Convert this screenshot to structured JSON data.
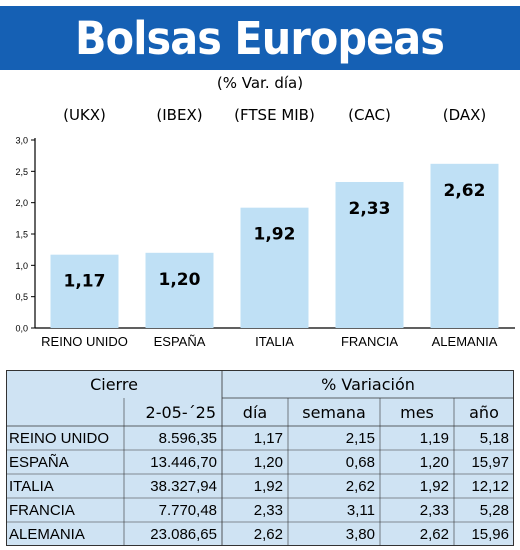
{
  "title": "Bolsas Europeas",
  "subtitle": "(% Var. día)",
  "chart_data": {
    "type": "bar",
    "title": "Bolsas Europeas",
    "subtitle": "(% Var. día)",
    "indices": [
      "(UKX)",
      "(IBEX)",
      "(FTSE MIB)",
      "(CAC)",
      "(DAX)"
    ],
    "categories": [
      "REINO UNIDO",
      "ESPAÑA",
      "ITALIA",
      "FRANCIA",
      "ALEMANIA"
    ],
    "values": [
      1.17,
      1.2,
      1.92,
      2.33,
      2.62
    ],
    "value_labels": [
      "1,17",
      "1,20",
      "1,92",
      "2,33",
      "2,62"
    ],
    "ylim": [
      0,
      3
    ],
    "yticks": [
      "0,0",
      "0,5",
      "1,0",
      "1,5",
      "2,0",
      "2,5",
      "3,0"
    ],
    "grid": false,
    "colors": {
      "bar": "#bfe0f5",
      "axis": "#000000"
    }
  },
  "table": {
    "header_cierre": "Cierre",
    "header_variacion": "% Variación",
    "date": "2-05-´25",
    "columns": [
      "día",
      "semana",
      "mes",
      "año"
    ],
    "rows": [
      {
        "name": "REINO UNIDO",
        "cierre": "8.596,35",
        "dia": "1,17",
        "semana": "2,15",
        "mes": "1,19",
        "anio": "5,18"
      },
      {
        "name": "ESPAÑA",
        "cierre": "13.446,70",
        "dia": "1,20",
        "semana": "0,68",
        "mes": "1,20",
        "anio": "15,97"
      },
      {
        "name": "ITALIA",
        "cierre": "38.327,94",
        "dia": "1,92",
        "semana": "2,62",
        "mes": "1,92",
        "anio": "12,12"
      },
      {
        "name": "FRANCIA",
        "cierre": "7.770,48",
        "dia": "2,33",
        "semana": "3,11",
        "mes": "2,33",
        "anio": "5,28"
      },
      {
        "name": "ALEMANIA",
        "cierre": "23.086,65",
        "dia": "2,62",
        "semana": "3,80",
        "mes": "2,62",
        "anio": "15,96"
      }
    ]
  },
  "colors": {
    "title_bar": "#1560b4",
    "table_bg": "#cfe3f3"
  }
}
